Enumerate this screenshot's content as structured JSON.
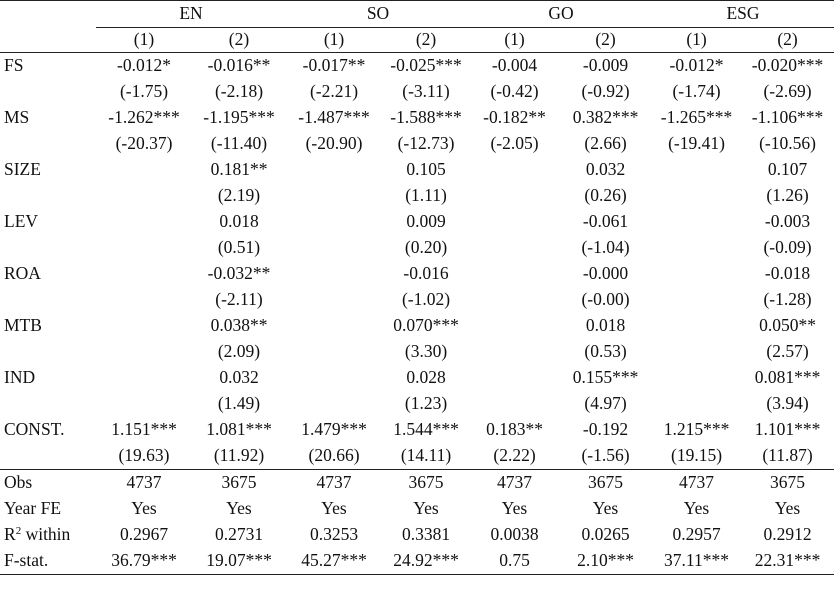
{
  "groups": [
    "EN",
    "SO",
    "GO",
    "ESG"
  ],
  "col_numbers": [
    "(1)",
    "(2)",
    "(1)",
    "(2)",
    "(1)",
    "(2)",
    "(1)",
    "(2)"
  ],
  "rows": [
    {
      "label": "FS",
      "cells": [
        "-0.012*",
        "-0.016**",
        "-0.017**",
        "-0.025***",
        "-0.004",
        "-0.009",
        "-0.012*",
        "-0.020***"
      ]
    },
    {
      "label": "",
      "cells": [
        "(-1.75)",
        "(-2.18)",
        "(-2.21)",
        "(-3.11)",
        "(-0.42)",
        "(-0.92)",
        "(-1.74)",
        "(-2.69)"
      ]
    },
    {
      "label": "MS",
      "cells": [
        "-1.262***",
        "-1.195***",
        "-1.487***",
        "-1.588***",
        "-0.182**",
        "0.382***",
        "-1.265***",
        "-1.106***"
      ]
    },
    {
      "label": "",
      "cells": [
        "(-20.37)",
        "(-11.40)",
        "(-20.90)",
        "(-12.73)",
        "(-2.05)",
        "(2.66)",
        "(-19.41)",
        "(-10.56)"
      ]
    },
    {
      "label": "SIZE",
      "cells": [
        "",
        "0.181**",
        "",
        "0.105",
        "",
        "0.032",
        "",
        "0.107"
      ]
    },
    {
      "label": "",
      "cells": [
        "",
        "(2.19)",
        "",
        "(1.11)",
        "",
        "(0.26)",
        "",
        "(1.26)"
      ]
    },
    {
      "label": "LEV",
      "cells": [
        "",
        "0.018",
        "",
        "0.009",
        "",
        "-0.061",
        "",
        "-0.003"
      ]
    },
    {
      "label": "",
      "cells": [
        "",
        "(0.51)",
        "",
        "(0.20)",
        "",
        "(-1.04)",
        "",
        "(-0.09)"
      ]
    },
    {
      "label": "ROA",
      "cells": [
        "",
        "-0.032**",
        "",
        "-0.016",
        "",
        "-0.000",
        "",
        "-0.018"
      ]
    },
    {
      "label": "",
      "cells": [
        "",
        "(-2.11)",
        "",
        "(-1.02)",
        "",
        "(-0.00)",
        "",
        "(-1.28)"
      ]
    },
    {
      "label": "MTB",
      "cells": [
        "",
        "0.038**",
        "",
        "0.070***",
        "",
        "0.018",
        "",
        "0.050**"
      ]
    },
    {
      "label": "",
      "cells": [
        "",
        "(2.09)",
        "",
        "(3.30)",
        "",
        "(0.53)",
        "",
        "(2.57)"
      ]
    },
    {
      "label": "IND",
      "cells": [
        "",
        "0.032",
        "",
        "0.028",
        "",
        "0.155***",
        "",
        "0.081***"
      ]
    },
    {
      "label": "",
      "cells": [
        "",
        "(1.49)",
        "",
        "(1.23)",
        "",
        "(4.97)",
        "",
        "(3.94)"
      ]
    },
    {
      "label": "CONST.",
      "cells": [
        "1.151***",
        "1.081***",
        "1.479***",
        "1.544***",
        "0.183**",
        "-0.192",
        "1.215***",
        "1.101***"
      ]
    },
    {
      "label": "",
      "cells": [
        "(19.63)",
        "(11.92)",
        "(20.66)",
        "(14.11)",
        "(2.22)",
        "(-1.56)",
        "(19.15)",
        "(11.87)"
      ]
    }
  ],
  "stats": [
    {
      "label": "Obs",
      "cells": [
        "4737",
        "3675",
        "4737",
        "3675",
        "4737",
        "3675",
        "4737",
        "3675"
      ]
    },
    {
      "label": "Year FE",
      "cells": [
        "Yes",
        "Yes",
        "Yes",
        "Yes",
        "Yes",
        "Yes",
        "Yes",
        "Yes"
      ]
    },
    {
      "label": "R",
      "sup": "2",
      "label_suffix": " within",
      "cells": [
        "0.2967",
        "0.2731",
        "0.3253",
        "0.3381",
        "0.0038",
        "0.0265",
        "0.2957",
        "0.2912"
      ]
    },
    {
      "label": "F-stat.",
      "cells": [
        "36.79***",
        "19.07***",
        "45.27***",
        "24.92***",
        "0.75",
        "2.10***",
        "37.11***",
        "22.31***"
      ]
    }
  ]
}
